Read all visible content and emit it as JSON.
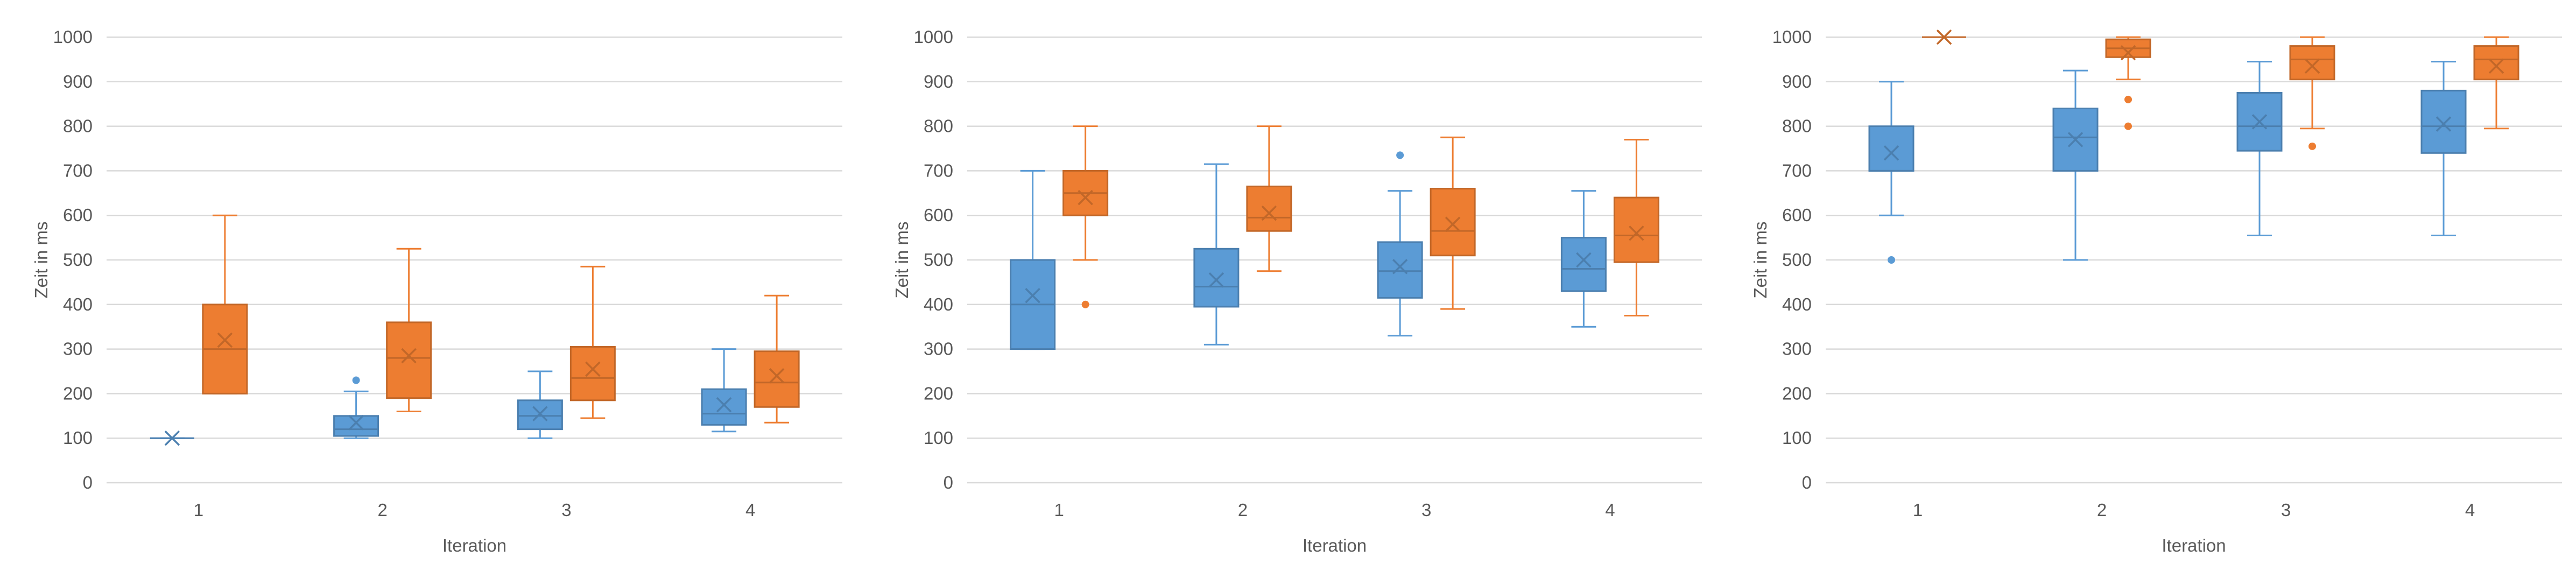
{
  "colors": {
    "series_a": "#5b9bd5",
    "series_a_dark": "#2e75b6",
    "series_b": "#ed7d31",
    "series_b_dark": "#c55a11",
    "grid": "#d9d9d9",
    "text": "#595959"
  },
  "chart_data": [
    {
      "type": "boxplot",
      "xlabel": "Iteration",
      "ylabel": "Zeit in ms",
      "ylim": [
        0,
        1000
      ],
      "yticks": [
        "0",
        "100",
        "200",
        "300",
        "400",
        "500",
        "600",
        "700",
        "800",
        "900",
        "1000"
      ],
      "categories": [
        "1",
        "2",
        "3",
        "4"
      ],
      "grid": true,
      "series": [
        {
          "color": "#5b9bd5",
          "stats": [
            {
              "min": 100,
              "q1": 100,
              "median": 100,
              "q3": 100,
              "max": 100,
              "mean": 100,
              "outliers": []
            },
            {
              "min": 100,
              "q1": 105,
              "median": 120,
              "q3": 150,
              "max": 205,
              "mean": 135,
              "outliers": [
                230
              ]
            },
            {
              "min": 100,
              "q1": 120,
              "median": 150,
              "q3": 185,
              "max": 250,
              "mean": 155,
              "outliers": []
            },
            {
              "min": 115,
              "q1": 130,
              "median": 155,
              "q3": 210,
              "max": 300,
              "mean": 175,
              "outliers": []
            }
          ]
        },
        {
          "color": "#ed7d31",
          "stats": [
            {
              "min": 200,
              "q1": 200,
              "median": 300,
              "q3": 400,
              "max": 600,
              "mean": 320,
              "outliers": []
            },
            {
              "min": 160,
              "q1": 190,
              "median": 280,
              "q3": 360,
              "max": 525,
              "mean": 285,
              "outliers": []
            },
            {
              "min": 145,
              "q1": 185,
              "median": 235,
              "q3": 305,
              "max": 485,
              "mean": 255,
              "outliers": []
            },
            {
              "min": 135,
              "q1": 170,
              "median": 225,
              "q3": 295,
              "max": 420,
              "mean": 240,
              "outliers": []
            }
          ]
        }
      ]
    },
    {
      "type": "boxplot",
      "xlabel": "Iteration",
      "ylabel": "Zeit in ms",
      "ylim": [
        0,
        1000
      ],
      "yticks": [
        "0",
        "100",
        "200",
        "300",
        "400",
        "500",
        "600",
        "700",
        "800",
        "900",
        "1000"
      ],
      "categories": [
        "1",
        "2",
        "3",
        "4"
      ],
      "grid": true,
      "series": [
        {
          "color": "#5b9bd5",
          "stats": [
            {
              "min": 300,
              "q1": 300,
              "median": 400,
              "q3": 500,
              "max": 700,
              "mean": 420,
              "outliers": []
            },
            {
              "min": 310,
              "q1": 395,
              "median": 440,
              "q3": 525,
              "max": 715,
              "mean": 455,
              "outliers": []
            },
            {
              "min": 330,
              "q1": 415,
              "median": 475,
              "q3": 540,
              "max": 655,
              "mean": 485,
              "outliers": [
                735
              ]
            },
            {
              "min": 350,
              "q1": 430,
              "median": 480,
              "q3": 550,
              "max": 655,
              "mean": 500,
              "outliers": []
            }
          ]
        },
        {
          "color": "#ed7d31",
          "stats": [
            {
              "min": 500,
              "q1": 600,
              "median": 650,
              "q3": 700,
              "max": 800,
              "mean": 640,
              "outliers": [
                400
              ]
            },
            {
              "min": 475,
              "q1": 565,
              "median": 595,
              "q3": 665,
              "max": 800,
              "mean": 605,
              "outliers": []
            },
            {
              "min": 390,
              "q1": 510,
              "median": 565,
              "q3": 660,
              "max": 775,
              "mean": 580,
              "outliers": []
            },
            {
              "min": 375,
              "q1": 495,
              "median": 555,
              "q3": 640,
              "max": 770,
              "mean": 560,
              "outliers": []
            }
          ]
        }
      ]
    },
    {
      "type": "boxplot",
      "xlabel": "Iteration",
      "ylabel": "Zeit in ms",
      "ylim": [
        0,
        1000
      ],
      "yticks": [
        "0",
        "100",
        "200",
        "300",
        "400",
        "500",
        "600",
        "700",
        "800",
        "900",
        "1000"
      ],
      "categories": [
        "1",
        "2",
        "3",
        "4"
      ],
      "grid": true,
      "series": [
        {
          "color": "#5b9bd5",
          "stats": [
            {
              "min": 600,
              "q1": 700,
              "median": 700,
              "q3": 800,
              "max": 900,
              "mean": 740,
              "outliers": [
                500
              ]
            },
            {
              "min": 500,
              "q1": 700,
              "median": 775,
              "q3": 840,
              "max": 925,
              "mean": 770,
              "outliers": []
            },
            {
              "min": 555,
              "q1": 745,
              "median": 800,
              "q3": 875,
              "max": 945,
              "mean": 810,
              "outliers": []
            },
            {
              "min": 555,
              "q1": 740,
              "median": 800,
              "q3": 880,
              "max": 945,
              "mean": 805,
              "outliers": []
            }
          ]
        },
        {
          "color": "#ed7d31",
          "stats": [
            {
              "min": 1000,
              "q1": 1000,
              "median": 1000,
              "q3": 1000,
              "max": 1000,
              "mean": 1000,
              "outliers": []
            },
            {
              "min": 905,
              "q1": 955,
              "median": 975,
              "q3": 995,
              "max": 1000,
              "mean": 965,
              "outliers": [
                860,
                800
              ]
            },
            {
              "min": 795,
              "q1": 905,
              "median": 950,
              "q3": 980,
              "max": 1000,
              "mean": 935,
              "outliers": [
                755
              ]
            },
            {
              "min": 795,
              "q1": 905,
              "median": 950,
              "q3": 980,
              "max": 1000,
              "mean": 935,
              "outliers": []
            }
          ]
        }
      ]
    }
  ]
}
